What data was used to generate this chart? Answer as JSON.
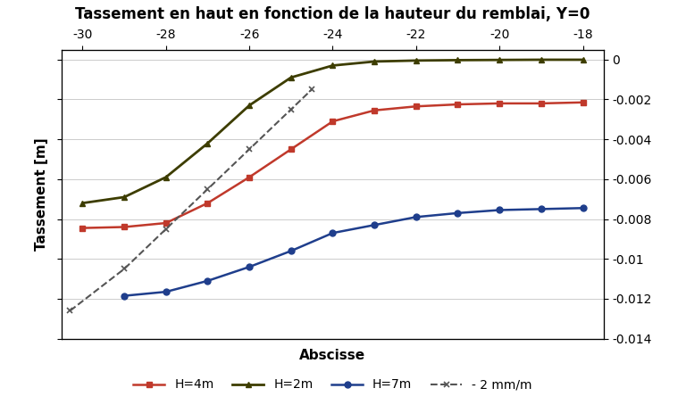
{
  "title": "Tassement en haut en fonction de la hauteur du remblai, Y=0",
  "xlabel": "Abscisse",
  "ylabel": "Tassement [m]",
  "x_top_label": "Abscisse",
  "xlim": [
    -30.5,
    -17.5
  ],
  "ylim": [
    -0.014,
    0.0005
  ],
  "x_ticks_top": [
    -30,
    -28,
    -26,
    -24,
    -22,
    -20,
    -18
  ],
  "y_ticks_right": [
    0,
    -0.002,
    -0.004,
    -0.006,
    -0.008,
    -0.01,
    -0.012,
    -0.014
  ],
  "H4m_x": [
    -30,
    -29,
    -28,
    -27,
    -26,
    -25,
    -24,
    -23,
    -22,
    -21,
    -20,
    -19,
    -18
  ],
  "H4m_y": [
    -0.00845,
    -0.0084,
    -0.0082,
    -0.0072,
    -0.0059,
    -0.0045,
    -0.0031,
    -0.00255,
    -0.00235,
    -0.00225,
    -0.0022,
    -0.0022,
    -0.00215
  ],
  "H2m_x": [
    -30,
    -29,
    -28,
    -27,
    -26,
    -25,
    -24,
    -23,
    -22,
    -21,
    -20,
    -19,
    -18
  ],
  "H2m_y": [
    -0.0072,
    -0.0069,
    -0.0059,
    -0.0042,
    -0.0023,
    -0.0009,
    -0.0003,
    -0.0001,
    -5e-05,
    -3e-05,
    -2e-05,
    -1e-05,
    -1e-05
  ],
  "H7m_x": [
    -29,
    -28,
    -27,
    -26,
    -25,
    -24,
    -23,
    -22,
    -21,
    -20,
    -19,
    -18
  ],
  "H7m_y": [
    -0.01185,
    -0.01165,
    -0.0111,
    -0.0104,
    -0.0096,
    -0.0087,
    -0.0083,
    -0.0079,
    -0.0077,
    -0.00755,
    -0.0075,
    -0.00745
  ],
  "dashed_x": [
    -30.3,
    -29,
    -28,
    -27,
    -26,
    -25,
    -24.5
  ],
  "dashed_y": [
    -0.0126,
    -0.0105,
    -0.0085,
    -0.0065,
    -0.0045,
    -0.0025,
    -0.0015
  ],
  "H4m_color": "#C0392B",
  "H2m_color": "#3D3D00",
  "H7m_color": "#1F3E8C",
  "dashed_color": "#555555",
  "bg_color": "#FFFFFF",
  "grid_color": "#CCCCCC",
  "marker_size": 5
}
